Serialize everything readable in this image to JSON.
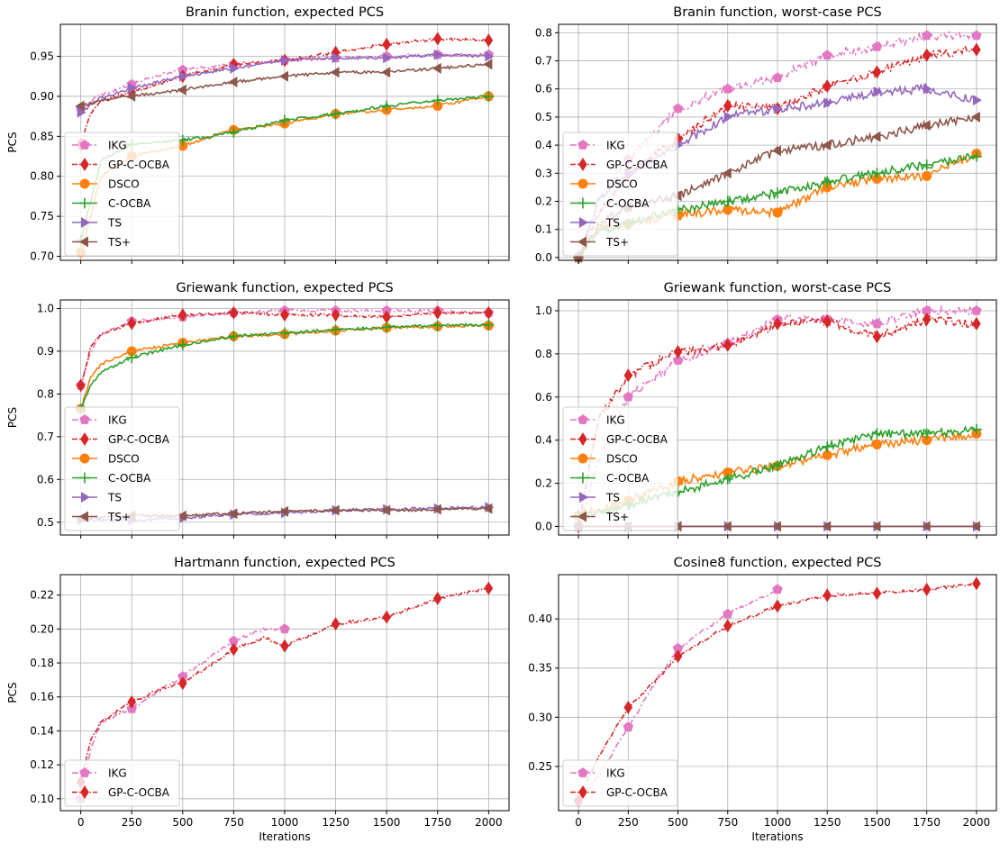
{
  "colors": {
    "IKG": "#e377c2",
    "GP-C-OCBA": "#d62728",
    "DSCO": "#ff7f0e",
    "C-OCBA": "#2ca02c",
    "TS": "#9467bd",
    "TS+": "#8c564b"
  },
  "chart_data": [
    {
      "type": "line",
      "title": "Branin function, expected PCS",
      "xlabel": "",
      "ylabel": "PCS",
      "xlim": [
        -100,
        2100
      ],
      "ylim": [
        0.695,
        0.99
      ],
      "xticks": [
        0,
        250,
        500,
        750,
        1000,
        1250,
        1500,
        1750,
        2000
      ],
      "yticks": [
        0.7,
        0.75,
        0.8,
        0.85,
        0.9,
        0.95
      ],
      "ytick_labels": [
        "0.70",
        "0.75",
        "0.80",
        "0.85",
        "0.90",
        "0.95"
      ],
      "xtick_labels": [
        "",
        "",
        "",
        "",
        "",
        "",
        "",
        "",
        ""
      ],
      "grid": true,
      "legend": "lower-left",
      "series": [
        {
          "name": "IKG",
          "x": [
            0,
            50,
            100,
            250,
            400,
            500,
            750,
            1000,
            1250,
            1500,
            1750,
            2000
          ],
          "y": [
            0.885,
            0.895,
            0.902,
            0.915,
            0.928,
            0.933,
            0.94,
            0.945,
            0.948,
            0.95,
            0.952,
            0.952
          ]
        },
        {
          "name": "GP-C-OCBA",
          "x": [
            0,
            50,
            100,
            250,
            500,
            750,
            1000,
            1250,
            1500,
            1750,
            2000
          ],
          "y": [
            0.84,
            0.88,
            0.895,
            0.905,
            0.925,
            0.94,
            0.945,
            0.955,
            0.965,
            0.972,
            0.97
          ]
        },
        {
          "name": "DSCO",
          "x": [
            0,
            100,
            250,
            500,
            750,
            1000,
            1250,
            1500,
            1750,
            2000
          ],
          "y": [
            0.705,
            0.8,
            0.825,
            0.838,
            0.858,
            0.866,
            0.878,
            0.883,
            0.888,
            0.9
          ]
        },
        {
          "name": "C-OCBA",
          "x": [
            0,
            100,
            250,
            500,
            750,
            1000,
            1250,
            1500,
            1750,
            2000
          ],
          "y": [
            0.72,
            0.82,
            0.84,
            0.845,
            0.855,
            0.87,
            0.878,
            0.888,
            0.895,
            0.9
          ]
        },
        {
          "name": "TS",
          "x": [
            0,
            100,
            250,
            500,
            750,
            1000,
            1250,
            1500,
            1750,
            2000
          ],
          "y": [
            0.88,
            0.898,
            0.91,
            0.925,
            0.935,
            0.945,
            0.948,
            0.948,
            0.952,
            0.95
          ]
        },
        {
          "name": "TS+",
          "x": [
            0,
            100,
            250,
            500,
            750,
            1000,
            1250,
            1500,
            1750,
            2000
          ],
          "y": [
            0.888,
            0.895,
            0.9,
            0.908,
            0.918,
            0.925,
            0.93,
            0.93,
            0.935,
            0.94
          ]
        }
      ]
    },
    {
      "type": "line",
      "title": "Branin function, worst-case PCS",
      "xlabel": "",
      "ylabel": "",
      "xlim": [
        -100,
        2100
      ],
      "ylim": [
        -0.01,
        0.83
      ],
      "xticks": [
        0,
        250,
        500,
        750,
        1000,
        1250,
        1500,
        1750,
        2000
      ],
      "yticks": [
        0.0,
        0.1,
        0.2,
        0.3,
        0.4,
        0.5,
        0.6,
        0.7,
        0.8
      ],
      "ytick_labels": [
        "0.0",
        "0.1",
        "0.2",
        "0.3",
        "0.4",
        "0.5",
        "0.6",
        "0.7",
        "0.8"
      ],
      "xtick_labels": [
        "",
        "",
        "",
        "",
        "",
        "",
        "",
        "",
        ""
      ],
      "grid": true,
      "legend": "lower-left",
      "series": [
        {
          "name": "IKG",
          "x": [
            0,
            100,
            250,
            500,
            750,
            1000,
            1250,
            1500,
            1750,
            2000
          ],
          "y": [
            0.0,
            0.2,
            0.35,
            0.53,
            0.6,
            0.64,
            0.72,
            0.75,
            0.79,
            0.79
          ]
        },
        {
          "name": "GP-C-OCBA",
          "x": [
            0,
            100,
            250,
            500,
            750,
            1000,
            1250,
            1500,
            1750,
            2000
          ],
          "y": [
            0.0,
            0.15,
            0.3,
            0.42,
            0.54,
            0.53,
            0.61,
            0.66,
            0.72,
            0.74
          ]
        },
        {
          "name": "DSCO",
          "x": [
            0,
            100,
            250,
            500,
            750,
            1000,
            1250,
            1500,
            1750,
            2000
          ],
          "y": [
            0.0,
            0.1,
            0.12,
            0.15,
            0.17,
            0.16,
            0.25,
            0.28,
            0.29,
            0.37
          ]
        },
        {
          "name": "C-OCBA",
          "x": [
            0,
            100,
            250,
            500,
            750,
            1000,
            1250,
            1500,
            1750,
            2000
          ],
          "y": [
            0.0,
            0.09,
            0.12,
            0.17,
            0.2,
            0.23,
            0.27,
            0.3,
            0.33,
            0.36
          ]
        },
        {
          "name": "TS",
          "x": [
            0,
            100,
            250,
            500,
            750,
            1000,
            1250,
            1500,
            1750,
            2000
          ],
          "y": [
            0.0,
            0.2,
            0.3,
            0.4,
            0.5,
            0.53,
            0.55,
            0.59,
            0.6,
            0.56
          ]
        },
        {
          "name": "TS+",
          "x": [
            0,
            100,
            250,
            500,
            750,
            1000,
            1250,
            1500,
            1750,
            2000
          ],
          "y": [
            0.0,
            0.12,
            0.18,
            0.22,
            0.3,
            0.38,
            0.4,
            0.43,
            0.47,
            0.5
          ]
        }
      ]
    },
    {
      "type": "line",
      "title": "Griewank function, expected PCS",
      "xlabel": "",
      "ylabel": "PCS",
      "xlim": [
        -100,
        2100
      ],
      "ylim": [
        0.47,
        1.02
      ],
      "xticks": [
        0,
        250,
        500,
        750,
        1000,
        1250,
        1500,
        1750,
        2000
      ],
      "yticks": [
        0.5,
        0.6,
        0.7,
        0.8,
        0.9,
        1.0
      ],
      "ytick_labels": [
        "0.5",
        "0.6",
        "0.7",
        "0.8",
        "0.9",
        "1.0"
      ],
      "xtick_labels": [
        "",
        "",
        "",
        "",
        "",
        "",
        "",
        "",
        ""
      ],
      "grid": true,
      "legend": "lower-left",
      "series": [
        {
          "name": "IKG",
          "x": [
            0,
            50,
            100,
            250,
            500,
            750,
            1000,
            1250,
            1500,
            1750,
            2000
          ],
          "y": [
            0.82,
            0.9,
            0.94,
            0.97,
            0.98,
            0.99,
            0.995,
            0.995,
            0.995,
            0.995,
            0.99
          ]
        },
        {
          "name": "GP-C-OCBA",
          "x": [
            0,
            50,
            100,
            250,
            500,
            750,
            1000,
            1250,
            1500,
            1750,
            2000
          ],
          "y": [
            0.82,
            0.91,
            0.94,
            0.965,
            0.985,
            0.99,
            0.985,
            0.985,
            0.98,
            0.99,
            0.99
          ]
        },
        {
          "name": "DSCO",
          "x": [
            0,
            50,
            100,
            250,
            500,
            750,
            1000,
            1250,
            1500,
            1750,
            2000
          ],
          "y": [
            0.765,
            0.84,
            0.87,
            0.9,
            0.92,
            0.935,
            0.94,
            0.948,
            0.955,
            0.958,
            0.96
          ]
        },
        {
          "name": "C-OCBA",
          "x": [
            0,
            50,
            100,
            250,
            500,
            750,
            1000,
            1250,
            1500,
            1750,
            2000
          ],
          "y": [
            0.765,
            0.82,
            0.85,
            0.885,
            0.915,
            0.935,
            0.943,
            0.95,
            0.956,
            0.96,
            0.962
          ]
        },
        {
          "name": "TS",
          "x": [
            0,
            250,
            500,
            750,
            1000,
            1250,
            1500,
            1750,
            2000
          ],
          "y": [
            0.505,
            0.505,
            0.51,
            0.518,
            0.522,
            0.528,
            0.53,
            0.532,
            0.535
          ]
        },
        {
          "name": "TS+",
          "x": [
            0,
            250,
            500,
            750,
            1000,
            1250,
            1500,
            1750,
            2000
          ],
          "y": [
            0.51,
            0.515,
            0.515,
            0.52,
            0.525,
            0.528,
            0.528,
            0.53,
            0.532
          ]
        }
      ]
    },
    {
      "type": "line",
      "title": "Griewank function, worst-case PCS",
      "xlabel": "",
      "ylabel": "",
      "xlim": [
        -100,
        2100
      ],
      "ylim": [
        -0.04,
        1.05
      ],
      "xticks": [
        0,
        250,
        500,
        750,
        1000,
        1250,
        1500,
        1750,
        2000
      ],
      "yticks": [
        0.0,
        0.2,
        0.4,
        0.6,
        0.8,
        1.0
      ],
      "ytick_labels": [
        "0.0",
        "0.2",
        "0.4",
        "0.6",
        "0.8",
        "1.0"
      ],
      "xtick_labels": [
        "",
        "",
        "",
        "",
        "",
        "",
        "",
        "",
        ""
      ],
      "grid": true,
      "legend": "lower-left",
      "series": [
        {
          "name": "IKG",
          "x": [
            0,
            100,
            250,
            500,
            750,
            1000,
            1250,
            1500,
            1750,
            2000
          ],
          "y": [
            0.0,
            0.3,
            0.6,
            0.77,
            0.85,
            0.96,
            0.96,
            0.94,
            1.0,
            1.0
          ]
        },
        {
          "name": "GP-C-OCBA",
          "x": [
            0,
            100,
            250,
            500,
            750,
            1000,
            1250,
            1500,
            1750,
            2000
          ],
          "y": [
            0.0,
            0.5,
            0.7,
            0.81,
            0.84,
            0.94,
            0.95,
            0.88,
            0.96,
            0.94
          ]
        },
        {
          "name": "DSCO",
          "x": [
            0,
            100,
            250,
            500,
            750,
            1000,
            1250,
            1500,
            1750,
            2000
          ],
          "y": [
            0.05,
            0.08,
            0.12,
            0.21,
            0.25,
            0.28,
            0.33,
            0.38,
            0.4,
            0.43
          ]
        },
        {
          "name": "C-OCBA",
          "x": [
            0,
            100,
            250,
            500,
            750,
            1000,
            1250,
            1500,
            1750,
            2000
          ],
          "y": [
            0.05,
            0.06,
            0.1,
            0.16,
            0.22,
            0.28,
            0.37,
            0.43,
            0.43,
            0.45
          ]
        },
        {
          "name": "TS",
          "x": [
            0,
            250,
            500,
            750,
            1000,
            1250,
            1500,
            1750,
            2000
          ],
          "y": [
            0.0,
            0.0,
            0.0,
            0.0,
            0.0,
            0.0,
            0.0,
            0.0,
            0.0
          ]
        },
        {
          "name": "TS+",
          "x": [
            0,
            250,
            500,
            750,
            1000,
            1250,
            1500,
            1750,
            2000
          ],
          "y": [
            0.0,
            0.0,
            0.0,
            0.0,
            0.0,
            0.0,
            0.0,
            0.0,
            0.0
          ]
        }
      ]
    },
    {
      "type": "line",
      "title": "Hartmann function, expected PCS",
      "xlabel": "Iterations",
      "ylabel": "PCS",
      "xlim": [
        -100,
        2100
      ],
      "ylim": [
        0.093,
        0.232
      ],
      "xticks": [
        0,
        250,
        500,
        750,
        1000,
        1250,
        1500,
        1750,
        2000
      ],
      "yticks": [
        0.1,
        0.12,
        0.14,
        0.16,
        0.18,
        0.2,
        0.22
      ],
      "ytick_labels": [
        "0.10",
        "0.12",
        "0.14",
        "0.16",
        "0.18",
        "0.20",
        "0.22"
      ],
      "xtick_labels": [
        "0",
        "250",
        "500",
        "750",
        "1000",
        "1250",
        "1500",
        "1750",
        "2000"
      ],
      "grid": true,
      "legend": "lower-left",
      "series": [
        {
          "name": "IKG",
          "x": [
            0,
            50,
            100,
            250,
            400,
            500,
            750,
            900,
            1000
          ],
          "y": [
            0.1,
            0.13,
            0.145,
            0.153,
            0.165,
            0.172,
            0.193,
            0.2,
            0.2
          ]
        },
        {
          "name": "GP-C-OCBA",
          "x": [
            0,
            50,
            100,
            250,
            400,
            500,
            750,
            900,
            1000,
            1250,
            1500,
            1750,
            2000
          ],
          "y": [
            0.11,
            0.135,
            0.145,
            0.157,
            0.165,
            0.168,
            0.188,
            0.195,
            0.19,
            0.203,
            0.207,
            0.218,
            0.224
          ]
        }
      ]
    },
    {
      "type": "line",
      "title": "Cosine8 function, expected PCS",
      "xlabel": "Iterations",
      "ylabel": "",
      "xlim": [
        -100,
        2100
      ],
      "ylim": [
        0.205,
        0.445
      ],
      "xticks": [
        0,
        250,
        500,
        750,
        1000,
        1250,
        1500,
        1750,
        2000
      ],
      "yticks": [
        0.25,
        0.3,
        0.35,
        0.4
      ],
      "ytick_labels": [
        "0.25",
        "0.30",
        "0.35",
        "0.40"
      ],
      "xtick_labels": [
        "0",
        "250",
        "500",
        "750",
        "1000",
        "1250",
        "1500",
        "1750",
        "2000"
      ],
      "grid": true,
      "legend": "lower-left",
      "series": [
        {
          "name": "IKG",
          "x": [
            0,
            100,
            250,
            400,
            500,
            750,
            900,
            1000
          ],
          "y": [
            0.215,
            0.24,
            0.29,
            0.34,
            0.37,
            0.405,
            0.42,
            0.43
          ]
        },
        {
          "name": "GP-C-OCBA",
          "x": [
            0,
            100,
            250,
            400,
            500,
            750,
            1000,
            1250,
            1500,
            1750,
            2000
          ],
          "y": [
            0.215,
            0.26,
            0.31,
            0.34,
            0.362,
            0.393,
            0.413,
            0.424,
            0.426,
            0.43,
            0.436
          ]
        }
      ]
    }
  ]
}
